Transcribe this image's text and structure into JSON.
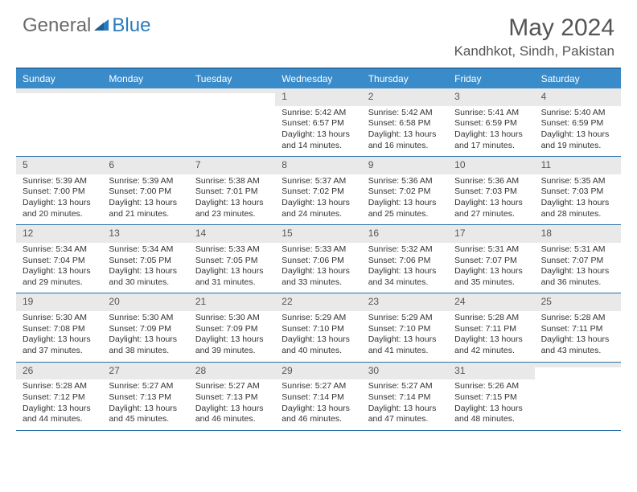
{
  "logo": {
    "text1": "General",
    "text2": "Blue"
  },
  "title": "May 2024",
  "location": "Kandhkot, Sindh, Pakistan",
  "colors": {
    "header_bg": "#3a8bc9",
    "border": "#2a6fa8",
    "daynum_bg": "#e9e9e9",
    "logo_gray": "#6a6a6a",
    "logo_blue": "#2a7bbf"
  },
  "day_labels": [
    "Sunday",
    "Monday",
    "Tuesday",
    "Wednesday",
    "Thursday",
    "Friday",
    "Saturday"
  ],
  "weeks": [
    [
      {
        "n": "",
        "sr": "",
        "ss": "",
        "dl": ""
      },
      {
        "n": "",
        "sr": "",
        "ss": "",
        "dl": ""
      },
      {
        "n": "",
        "sr": "",
        "ss": "",
        "dl": ""
      },
      {
        "n": "1",
        "sr": "Sunrise: 5:42 AM",
        "ss": "Sunset: 6:57 PM",
        "dl": "Daylight: 13 hours and 14 minutes."
      },
      {
        "n": "2",
        "sr": "Sunrise: 5:42 AM",
        "ss": "Sunset: 6:58 PM",
        "dl": "Daylight: 13 hours and 16 minutes."
      },
      {
        "n": "3",
        "sr": "Sunrise: 5:41 AM",
        "ss": "Sunset: 6:59 PM",
        "dl": "Daylight: 13 hours and 17 minutes."
      },
      {
        "n": "4",
        "sr": "Sunrise: 5:40 AM",
        "ss": "Sunset: 6:59 PM",
        "dl": "Daylight: 13 hours and 19 minutes."
      }
    ],
    [
      {
        "n": "5",
        "sr": "Sunrise: 5:39 AM",
        "ss": "Sunset: 7:00 PM",
        "dl": "Daylight: 13 hours and 20 minutes."
      },
      {
        "n": "6",
        "sr": "Sunrise: 5:39 AM",
        "ss": "Sunset: 7:00 PM",
        "dl": "Daylight: 13 hours and 21 minutes."
      },
      {
        "n": "7",
        "sr": "Sunrise: 5:38 AM",
        "ss": "Sunset: 7:01 PM",
        "dl": "Daylight: 13 hours and 23 minutes."
      },
      {
        "n": "8",
        "sr": "Sunrise: 5:37 AM",
        "ss": "Sunset: 7:02 PM",
        "dl": "Daylight: 13 hours and 24 minutes."
      },
      {
        "n": "9",
        "sr": "Sunrise: 5:36 AM",
        "ss": "Sunset: 7:02 PM",
        "dl": "Daylight: 13 hours and 25 minutes."
      },
      {
        "n": "10",
        "sr": "Sunrise: 5:36 AM",
        "ss": "Sunset: 7:03 PM",
        "dl": "Daylight: 13 hours and 27 minutes."
      },
      {
        "n": "11",
        "sr": "Sunrise: 5:35 AM",
        "ss": "Sunset: 7:03 PM",
        "dl": "Daylight: 13 hours and 28 minutes."
      }
    ],
    [
      {
        "n": "12",
        "sr": "Sunrise: 5:34 AM",
        "ss": "Sunset: 7:04 PM",
        "dl": "Daylight: 13 hours and 29 minutes."
      },
      {
        "n": "13",
        "sr": "Sunrise: 5:34 AM",
        "ss": "Sunset: 7:05 PM",
        "dl": "Daylight: 13 hours and 30 minutes."
      },
      {
        "n": "14",
        "sr": "Sunrise: 5:33 AM",
        "ss": "Sunset: 7:05 PM",
        "dl": "Daylight: 13 hours and 31 minutes."
      },
      {
        "n": "15",
        "sr": "Sunrise: 5:33 AM",
        "ss": "Sunset: 7:06 PM",
        "dl": "Daylight: 13 hours and 33 minutes."
      },
      {
        "n": "16",
        "sr": "Sunrise: 5:32 AM",
        "ss": "Sunset: 7:06 PM",
        "dl": "Daylight: 13 hours and 34 minutes."
      },
      {
        "n": "17",
        "sr": "Sunrise: 5:31 AM",
        "ss": "Sunset: 7:07 PM",
        "dl": "Daylight: 13 hours and 35 minutes."
      },
      {
        "n": "18",
        "sr": "Sunrise: 5:31 AM",
        "ss": "Sunset: 7:07 PM",
        "dl": "Daylight: 13 hours and 36 minutes."
      }
    ],
    [
      {
        "n": "19",
        "sr": "Sunrise: 5:30 AM",
        "ss": "Sunset: 7:08 PM",
        "dl": "Daylight: 13 hours and 37 minutes."
      },
      {
        "n": "20",
        "sr": "Sunrise: 5:30 AM",
        "ss": "Sunset: 7:09 PM",
        "dl": "Daylight: 13 hours and 38 minutes."
      },
      {
        "n": "21",
        "sr": "Sunrise: 5:30 AM",
        "ss": "Sunset: 7:09 PM",
        "dl": "Daylight: 13 hours and 39 minutes."
      },
      {
        "n": "22",
        "sr": "Sunrise: 5:29 AM",
        "ss": "Sunset: 7:10 PM",
        "dl": "Daylight: 13 hours and 40 minutes."
      },
      {
        "n": "23",
        "sr": "Sunrise: 5:29 AM",
        "ss": "Sunset: 7:10 PM",
        "dl": "Daylight: 13 hours and 41 minutes."
      },
      {
        "n": "24",
        "sr": "Sunrise: 5:28 AM",
        "ss": "Sunset: 7:11 PM",
        "dl": "Daylight: 13 hours and 42 minutes."
      },
      {
        "n": "25",
        "sr": "Sunrise: 5:28 AM",
        "ss": "Sunset: 7:11 PM",
        "dl": "Daylight: 13 hours and 43 minutes."
      }
    ],
    [
      {
        "n": "26",
        "sr": "Sunrise: 5:28 AM",
        "ss": "Sunset: 7:12 PM",
        "dl": "Daylight: 13 hours and 44 minutes."
      },
      {
        "n": "27",
        "sr": "Sunrise: 5:27 AM",
        "ss": "Sunset: 7:13 PM",
        "dl": "Daylight: 13 hours and 45 minutes."
      },
      {
        "n": "28",
        "sr": "Sunrise: 5:27 AM",
        "ss": "Sunset: 7:13 PM",
        "dl": "Daylight: 13 hours and 46 minutes."
      },
      {
        "n": "29",
        "sr": "Sunrise: 5:27 AM",
        "ss": "Sunset: 7:14 PM",
        "dl": "Daylight: 13 hours and 46 minutes."
      },
      {
        "n": "30",
        "sr": "Sunrise: 5:27 AM",
        "ss": "Sunset: 7:14 PM",
        "dl": "Daylight: 13 hours and 47 minutes."
      },
      {
        "n": "31",
        "sr": "Sunrise: 5:26 AM",
        "ss": "Sunset: 7:15 PM",
        "dl": "Daylight: 13 hours and 48 minutes."
      },
      {
        "n": "",
        "sr": "",
        "ss": "",
        "dl": ""
      }
    ]
  ]
}
